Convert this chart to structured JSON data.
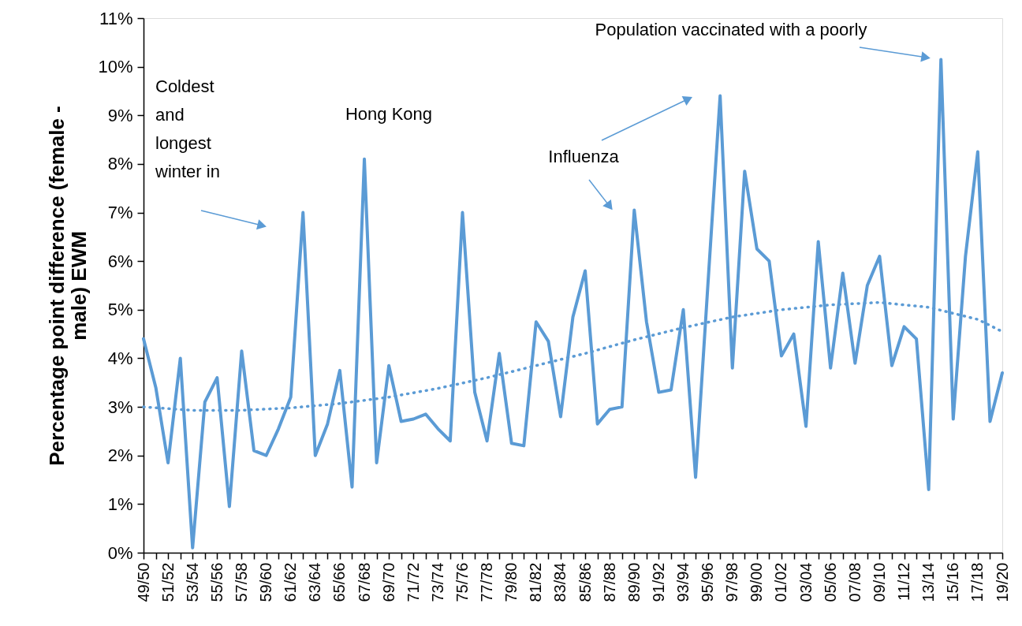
{
  "chart_data": {
    "type": "line",
    "ylabel": "Percentage point difference (female - male) EWM",
    "categories": [
      "49/50",
      null,
      "51/52",
      null,
      "53/54",
      null,
      "55/56",
      null,
      "57/58",
      null,
      "59/60",
      null,
      "61/62",
      null,
      "63/64",
      null,
      "65/66",
      null,
      "67/68",
      null,
      "69/70",
      null,
      "71/72",
      null,
      "73/74",
      null,
      "75/76",
      null,
      "77/78",
      null,
      "79/80",
      null,
      "81/82",
      null,
      "83/84",
      null,
      "85/86",
      null,
      "87/88",
      null,
      "89/90",
      null,
      "91/92",
      null,
      "93/94",
      null,
      "95/96",
      null,
      "97/98",
      null,
      "99/00",
      null,
      "01/02",
      null,
      "03/04",
      null,
      "05/06",
      null,
      "07/08",
      null,
      "09/10",
      null,
      "11/12",
      null,
      "13/14",
      null,
      "15/16",
      null,
      "17/18",
      null,
      "19/20"
    ],
    "series": [
      {
        "color": "#5b9bd5",
        "line_style": "solid",
        "values": [
          4.4,
          3.4,
          1.85,
          4.0,
          0.1,
          3.1,
          3.6,
          0.95,
          4.15,
          2.1,
          2.0,
          2.55,
          3.2,
          7.0,
          2.0,
          2.65,
          3.75,
          1.35,
          8.1,
          1.85,
          3.85,
          2.7,
          2.75,
          2.85,
          2.55,
          2.3,
          7.0,
          3.3,
          2.3,
          4.1,
          2.25,
          2.2,
          4.75,
          4.35,
          2.8,
          4.85,
          5.8,
          2.65,
          2.95,
          3.0,
          7.05,
          4.75,
          3.3,
          3.35,
          5.0,
          1.55,
          5.5,
          9.4,
          3.8,
          7.85,
          6.25,
          6.0,
          4.05,
          4.5,
          2.6,
          6.4,
          3.8,
          5.75,
          3.9,
          5.5,
          6.1,
          3.85,
          4.65,
          4.4,
          1.3,
          10.15,
          2.75,
          6.1,
          8.25,
          2.7,
          3.7
        ]
      },
      {
        "type": "line",
        "color": "#5b9bd5",
        "line_style": "dotted",
        "x": [
          "49/50",
          "53/54",
          "57/58",
          "61/62",
          "65/66",
          "69/70",
          "73/74",
          "77/78",
          "81/82",
          "85/86",
          "89/90",
          "93/94",
          "97/98",
          "01/02",
          "05/06",
          "09/10",
          "13/14",
          "17/18",
          "19/20"
        ],
        "values": [
          3.0,
          2.93,
          2.93,
          2.98,
          3.07,
          3.2,
          3.38,
          3.6,
          3.85,
          4.1,
          4.38,
          4.63,
          4.85,
          5.0,
          5.1,
          5.15,
          5.05,
          4.8,
          4.55
        ]
      }
    ],
    "ylim": [
      0,
      11
    ],
    "yticks": [
      {
        "value": 0,
        "label": "0%"
      },
      {
        "value": 1,
        "label": "1%"
      },
      {
        "value": 2,
        "label": "2%"
      },
      {
        "value": 3,
        "label": "3%"
      },
      {
        "value": 4,
        "label": "4%"
      },
      {
        "value": 5,
        "label": "5%"
      },
      {
        "value": 6,
        "label": "6%"
      },
      {
        "value": 7,
        "label": "7%"
      },
      {
        "value": 8,
        "label": "8%"
      },
      {
        "value": 9,
        "label": "9%"
      },
      {
        "value": 10,
        "label": "10%"
      },
      {
        "value": 11,
        "label": "11%"
      }
    ],
    "grid": false,
    "marker": "none",
    "annotations": [
      "Coldest and longest winter in",
      "Hong Kong",
      "Influenza",
      "Population vaccinated with a poorly"
    ]
  }
}
